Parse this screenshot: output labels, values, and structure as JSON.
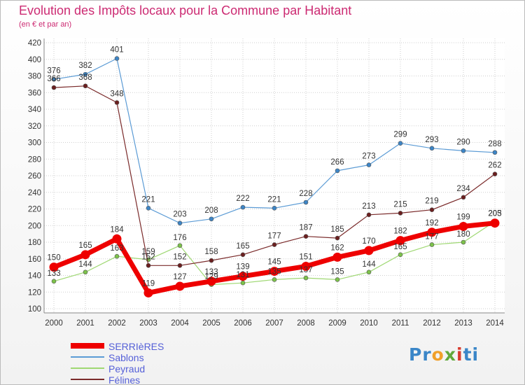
{
  "header": {
    "title": "Evolution des Impôts locaux pour la Commune par Habitant",
    "subtitle": "(en € et par an)"
  },
  "logo": {
    "text": "Proxiti"
  },
  "chart_data": {
    "type": "line",
    "title": "Evolution des Impôts locaux pour la Commune par Habitant",
    "subtitle": "(en € et par an)",
    "x": [
      2000,
      2001,
      2002,
      2003,
      2004,
      2005,
      2006,
      2007,
      2008,
      2009,
      2010,
      2011,
      2012,
      2013,
      2014
    ],
    "y_ticks": [
      100,
      120,
      140,
      160,
      180,
      200,
      220,
      240,
      260,
      280,
      300,
      320,
      340,
      360,
      380,
      400,
      420
    ],
    "ylim": [
      100,
      420
    ],
    "grid": true,
    "legend_position": "bottom-left",
    "series": [
      {
        "name": "Sablons",
        "color": "#5b9bd5",
        "width": 1.2,
        "marker_color": "#3d85c6",
        "values": [
          376,
          382,
          401,
          221,
          203,
          208,
          222,
          221,
          228,
          266,
          273,
          299,
          293,
          290,
          288
        ]
      },
      {
        "name": "Peyraud",
        "color": "#9fd873",
        "width": 1.2,
        "marker_color": "#7cc24a",
        "values": [
          133,
          144,
          163,
          159,
          176,
          129,
          131,
          135,
          137,
          135,
          144,
          165,
          177,
          180,
          205
        ]
      },
      {
        "name": "Félines",
        "color": "#7a2a2a",
        "width": 1.2,
        "marker_color": "#6b1f1f",
        "values": [
          366,
          368,
          348,
          152,
          152,
          158,
          165,
          177,
          187,
          185,
          213,
          215,
          219,
          234,
          262
        ]
      },
      {
        "name": "SERRIèRES",
        "color": "#ee0000",
        "width": 7,
        "marker_color": "#ee0000",
        "values": [
          150,
          165,
          184,
          119,
          127,
          133,
          139,
          145,
          151,
          162,
          170,
          182,
          192,
          199,
          203
        ]
      }
    ],
    "labels": [
      {
        "series": "Sablons",
        "values": [
          "376",
          "382",
          "401",
          "221",
          "203",
          "208",
          "222",
          "221",
          "228",
          "266",
          "273",
          "299",
          "293",
          "290",
          "288"
        ]
      },
      {
        "series": "Peyraud",
        "values": [
          "133",
          "144",
          "163",
          "159",
          "176",
          "129",
          "131",
          "135",
          "137",
          "135",
          "144",
          "165",
          "177",
          "180",
          "205"
        ]
      },
      {
        "series": "Félines",
        "values": [
          "366",
          "368",
          "348",
          "152",
          "152",
          "158",
          "165",
          "177",
          "187",
          "185",
          "213",
          "215",
          "219",
          "234",
          "262"
        ]
      },
      {
        "series": "SERRIèRES",
        "values": [
          "150",
          "165",
          "184",
          "119",
          "127",
          "133",
          "139",
          "145",
          "151",
          "162",
          "170",
          "182",
          "192",
          "199",
          "203"
        ]
      }
    ],
    "legend": [
      {
        "name": "SERRIèRES",
        "color": "#ee0000",
        "thick": true
      },
      {
        "name": "Sablons",
        "color": "#5b9bd5",
        "thick": false
      },
      {
        "name": "Peyraud",
        "color": "#9fd873",
        "thick": false
      },
      {
        "name": "Félines",
        "color": "#7a2a2a",
        "thick": false
      }
    ]
  }
}
